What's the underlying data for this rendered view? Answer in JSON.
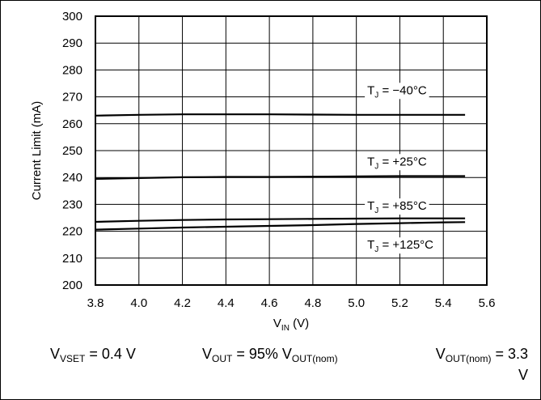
{
  "chart_data": {
    "type": "line",
    "title": "",
    "xlabel": "V",
    "xlabel_sub": "IN",
    "xlabel_unit": " (V)",
    "ylabel": "Current Limit (mA)",
    "xlim": [
      3.8,
      5.6
    ],
    "ylim": [
      200,
      300
    ],
    "x_ticks": [
      "3.8",
      "4.0",
      "4.2",
      "4.4",
      "4.6",
      "4.8",
      "5.0",
      "5.2",
      "5.4",
      "5.6"
    ],
    "y_ticks": [
      "200",
      "210",
      "220",
      "230",
      "240",
      "250",
      "260",
      "270",
      "280",
      "290",
      "300"
    ],
    "grid": true,
    "series": [
      {
        "name": "T_J = −40°C",
        "label_main": "T",
        "label_sub": "J",
        "label_rest": " = −40°C",
        "x": [
          3.8,
          4.0,
          4.2,
          4.4,
          4.6,
          4.8,
          5.0,
          5.2,
          5.4,
          5.5
        ],
        "y": [
          263.0,
          263.3,
          263.5,
          263.5,
          263.5,
          263.4,
          263.3,
          263.3,
          263.3,
          263.3
        ],
        "label_at": [
          5.05,
          271
        ]
      },
      {
        "name": "T_J = +25°C",
        "label_main": "T",
        "label_sub": "J",
        "label_rest": " = +25°C",
        "x": [
          3.8,
          4.0,
          4.2,
          4.4,
          4.6,
          4.8,
          5.0,
          5.2,
          5.4,
          5.5
        ],
        "y": [
          239.5,
          239.8,
          240.1,
          240.2,
          240.2,
          240.3,
          240.4,
          240.5,
          240.5,
          240.5
        ],
        "label_at": [
          5.05,
          244.5
        ]
      },
      {
        "name": "T_J = +85°C",
        "label_main": "T",
        "label_sub": "J",
        "label_rest": " = +85°C",
        "x": [
          3.8,
          4.0,
          4.2,
          4.4,
          4.6,
          4.8,
          5.0,
          5.2,
          5.4,
          5.5
        ],
        "y": [
          223.5,
          223.9,
          224.2,
          224.4,
          224.5,
          224.6,
          224.7,
          224.8,
          224.8,
          224.8
        ],
        "label_at": [
          5.05,
          228
        ]
      },
      {
        "name": "T_J = +125°C",
        "label_main": "T",
        "label_sub": "J",
        "label_rest": " = +125°C",
        "x": [
          3.8,
          4.0,
          4.2,
          4.4,
          4.6,
          4.8,
          5.0,
          5.2,
          5.4,
          5.5
        ],
        "y": [
          220.6,
          221.0,
          221.4,
          221.7,
          222.0,
          222.3,
          222.7,
          223.0,
          223.3,
          223.4
        ],
        "label_at": [
          5.05,
          213.5
        ]
      }
    ],
    "line_color": "#000000",
    "grid_color": "#000000"
  },
  "conditions": {
    "c1_a": "V",
    "c1_sub": "VSET",
    "c1_b": " = 0.4 V",
    "c2_a": "V",
    "c2_sub": "OUT",
    "c2_b": " = 95% V",
    "c2_sub2": "OUT(nom)",
    "c3_a": "V",
    "c3_sub": "OUT(nom)",
    "c3_b": " = 3.3",
    "c3_c": "V"
  }
}
